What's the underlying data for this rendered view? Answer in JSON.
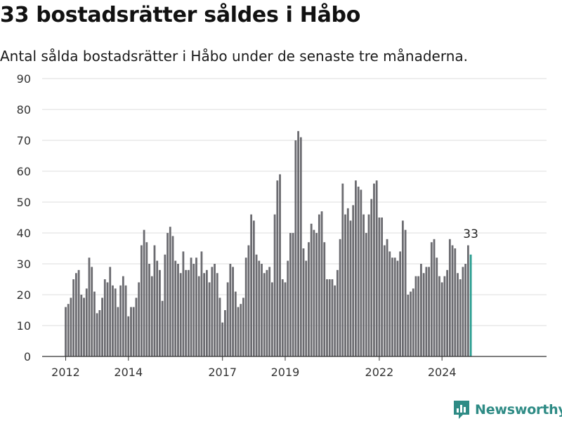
{
  "title": "33 bostadsrätter såldes i Håbo",
  "subtitle": "Antal sålda bostadsrätter i Håbo under de senaste tre månaderna.",
  "brand": {
    "name": "Newsworthy",
    "color": "#2e8b85"
  },
  "chart_data": {
    "type": "bar",
    "x_start": "2012-01",
    "x_tick_labels": [
      "2012",
      "2014",
      "2017",
      "2019",
      "2022",
      "2024"
    ],
    "y_ticks": [
      0,
      10,
      20,
      30,
      40,
      50,
      60,
      70,
      80,
      90
    ],
    "ylim": [
      0,
      90
    ],
    "grid": true,
    "colors": {
      "bar": "#6b6b70",
      "highlight": "#2a9d90"
    },
    "highlight_label": "33",
    "values": [
      16,
      17,
      19,
      25,
      27,
      28,
      20,
      19,
      22,
      32,
      29,
      21,
      14,
      15,
      19,
      25,
      24,
      29,
      23,
      22,
      16,
      23,
      26,
      23,
      13,
      16,
      16,
      19,
      24,
      36,
      41,
      37,
      30,
      26,
      36,
      31,
      28,
      18,
      33,
      40,
      42,
      39,
      31,
      30,
      27,
      34,
      28,
      28,
      32,
      30,
      32,
      26,
      34,
      27,
      28,
      24,
      29,
      30,
      27,
      19,
      11,
      15,
      24,
      30,
      29,
      21,
      16,
      17,
      19,
      32,
      36,
      46,
      44,
      33,
      31,
      30,
      27,
      28,
      29,
      24,
      46,
      57,
      59,
      25,
      24,
      31,
      40,
      40,
      70,
      73,
      71,
      35,
      31,
      37,
      43,
      41,
      40,
      46,
      47,
      37,
      25,
      25,
      25,
      23,
      28,
      38,
      56,
      46,
      48,
      44,
      49,
      57,
      55,
      54,
      46,
      40,
      46,
      51,
      56,
      57,
      45,
      45,
      36,
      38,
      34,
      32,
      32,
      31,
      34,
      44,
      41,
      20,
      21,
      22,
      26,
      26,
      30,
      27,
      29,
      29,
      37,
      38,
      32,
      26,
      24,
      26,
      28,
      38,
      36,
      35,
      27,
      25,
      29,
      30,
      36,
      33
    ]
  }
}
